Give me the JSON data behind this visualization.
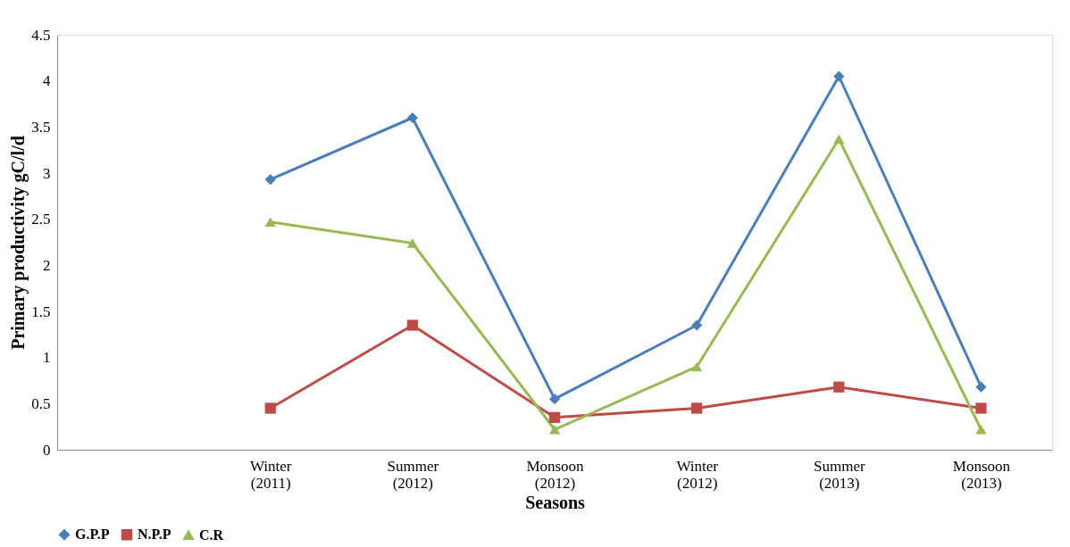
{
  "chart_data": {
    "type": "line",
    "xlabel": "Seasons",
    "ylabel": "Primary  productivity gC/l/d",
    "categories": [
      null,
      "Winter (2011)",
      "Summer (2012)",
      "Monsoon (2012)",
      "Winter (2012)",
      "Summer (2013)",
      "Monsoon (2013)"
    ],
    "series": [
      {
        "name": "G.P.P",
        "color": "#4a7ebb",
        "marker": "diamond",
        "values": [
          null,
          2.93,
          3.6,
          0.55,
          1.35,
          4.05,
          0.68
        ]
      },
      {
        "name": "N.P.P",
        "color": "#be4b48",
        "marker": "square",
        "values": [
          null,
          0.45,
          1.35,
          0.35,
          0.45,
          0.68,
          0.45
        ]
      },
      {
        "name": "C.R",
        "color": "#98b954",
        "marker": "triangle",
        "values": [
          null,
          2.47,
          2.24,
          0.22,
          0.9,
          3.37,
          0.22
        ]
      }
    ],
    "ylim": [
      0,
      4.5
    ],
    "yticks": [
      0,
      0.5,
      1,
      1.5,
      2,
      2.5,
      3,
      3.5,
      4,
      4.5
    ],
    "grid": false,
    "legend": "bottom",
    "line_style": "solid"
  }
}
